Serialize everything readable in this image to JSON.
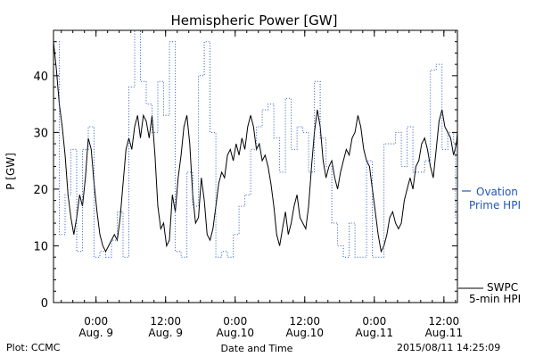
{
  "chart_data": {
    "type": "line",
    "title": "Hemispheric Power [GW]",
    "ylabel": "P [GW]",
    "xlabel": "Date and Time",
    "ylim": [
      0,
      48
    ],
    "yticks": [
      0,
      10,
      20,
      30,
      40
    ],
    "xlim": [
      "2015-08-08 16:40",
      "2015-08-11 14:20"
    ],
    "xticks": [
      {
        "time": "2015-08-09 00:00",
        "line1": "0:00",
        "line2": "Aug. 9"
      },
      {
        "time": "2015-08-09 12:00",
        "line1": "12:00",
        "line2": "Aug. 9"
      },
      {
        "time": "2015-08-10 00:00",
        "line1": "0:00",
        "line2": "Aug.10"
      },
      {
        "time": "2015-08-10 12:00",
        "line1": "12:00",
        "line2": "Aug.10"
      },
      {
        "time": "2015-08-11 00:00",
        "line1": "0:00",
        "line2": "Aug.11"
      },
      {
        "time": "2015-08-11 12:00",
        "line1": "12:00",
        "line2": "Aug.11"
      }
    ],
    "grid": false,
    "series": [
      {
        "name": "SWPC 5-min HPI",
        "name_line1": "SWPC",
        "name_line2": "5-min HPI",
        "color": "#000000",
        "style": "solid",
        "points": [
          [
            "2015-08-08 16:40",
            46
          ],
          [
            "2015-08-08 17:10",
            41
          ],
          [
            "2015-08-08 17:40",
            35
          ],
          [
            "2015-08-08 18:10",
            31
          ],
          [
            "2015-08-08 18:40",
            26
          ],
          [
            "2015-08-08 19:10",
            19
          ],
          [
            "2015-08-08 19:40",
            15
          ],
          [
            "2015-08-08 20:10",
            12
          ],
          [
            "2015-08-08 20:40",
            15
          ],
          [
            "2015-08-08 21:10",
            19
          ],
          [
            "2015-08-08 21:40",
            17
          ],
          [
            "2015-08-08 22:10",
            22
          ],
          [
            "2015-08-08 22:40",
            29
          ],
          [
            "2015-08-08 23:10",
            27
          ],
          [
            "2015-08-08 23:40",
            21
          ],
          [
            "2015-08-09 00:10",
            16
          ],
          [
            "2015-08-09 00:40",
            12
          ],
          [
            "2015-08-09 01:10",
            10
          ],
          [
            "2015-08-09 01:40",
            9
          ],
          [
            "2015-08-09 02:10",
            10
          ],
          [
            "2015-08-09 02:40",
            11
          ],
          [
            "2015-08-09 03:10",
            12
          ],
          [
            "2015-08-09 03:40",
            11
          ],
          [
            "2015-08-09 04:10",
            15
          ],
          [
            "2015-08-09 04:40",
            21
          ],
          [
            "2015-08-09 05:10",
            27
          ],
          [
            "2015-08-09 05:40",
            29
          ],
          [
            "2015-08-09 06:10",
            27
          ],
          [
            "2015-08-09 06:40",
            31
          ],
          [
            "2015-08-09 07:10",
            33
          ],
          [
            "2015-08-09 07:40",
            29
          ],
          [
            "2015-08-09 08:10",
            33
          ],
          [
            "2015-08-09 08:40",
            32
          ],
          [
            "2015-08-09 09:10",
            29
          ],
          [
            "2015-08-09 09:40",
            33
          ],
          [
            "2015-08-09 10:10",
            26
          ],
          [
            "2015-08-09 10:40",
            17
          ],
          [
            "2015-08-09 11:10",
            13
          ],
          [
            "2015-08-09 11:40",
            14
          ],
          [
            "2015-08-09 12:10",
            10
          ],
          [
            "2015-08-09 12:40",
            11
          ],
          [
            "2015-08-09 13:10",
            19
          ],
          [
            "2015-08-09 13:40",
            16
          ],
          [
            "2015-08-09 14:10",
            22
          ],
          [
            "2015-08-09 14:40",
            26
          ],
          [
            "2015-08-09 15:10",
            31
          ],
          [
            "2015-08-09 15:40",
            33
          ],
          [
            "2015-08-09 16:10",
            28
          ],
          [
            "2015-08-09 16:40",
            19
          ],
          [
            "2015-08-09 17:10",
            14
          ],
          [
            "2015-08-09 17:40",
            15
          ],
          [
            "2015-08-09 18:10",
            22
          ],
          [
            "2015-08-09 18:40",
            18
          ],
          [
            "2015-08-09 19:10",
            12
          ],
          [
            "2015-08-09 19:40",
            11
          ],
          [
            "2015-08-09 20:10",
            13
          ],
          [
            "2015-08-09 20:40",
            17
          ],
          [
            "2015-08-09 21:10",
            21
          ],
          [
            "2015-08-09 21:40",
            23
          ],
          [
            "2015-08-09 22:10",
            22
          ],
          [
            "2015-08-09 22:40",
            26
          ],
          [
            "2015-08-09 23:10",
            27
          ],
          [
            "2015-08-09 23:40",
            25
          ],
          [
            "2015-08-10 00:10",
            28
          ],
          [
            "2015-08-10 00:40",
            26
          ],
          [
            "2015-08-10 01:10",
            29
          ],
          [
            "2015-08-10 01:40",
            27
          ],
          [
            "2015-08-10 02:10",
            31
          ],
          [
            "2015-08-10 02:40",
            33
          ],
          [
            "2015-08-10 03:10",
            31
          ],
          [
            "2015-08-10 03:40",
            27
          ],
          [
            "2015-08-10 04:10",
            28
          ],
          [
            "2015-08-10 04:40",
            25
          ],
          [
            "2015-08-10 05:10",
            26
          ],
          [
            "2015-08-10 05:40",
            24
          ],
          [
            "2015-08-10 06:10",
            21
          ],
          [
            "2015-08-10 06:40",
            17
          ],
          [
            "2015-08-10 07:10",
            12
          ],
          [
            "2015-08-10 07:40",
            10
          ],
          [
            "2015-08-10 08:10",
            13
          ],
          [
            "2015-08-10 08:40",
            16
          ],
          [
            "2015-08-10 09:10",
            12
          ],
          [
            "2015-08-10 09:40",
            14
          ],
          [
            "2015-08-10 10:10",
            17
          ],
          [
            "2015-08-10 10:40",
            19
          ],
          [
            "2015-08-10 11:10",
            15
          ],
          [
            "2015-08-10 11:40",
            14
          ],
          [
            "2015-08-10 12:10",
            13
          ],
          [
            "2015-08-10 12:40",
            17
          ],
          [
            "2015-08-10 13:10",
            24
          ],
          [
            "2015-08-10 13:40",
            30
          ],
          [
            "2015-08-10 14:10",
            34
          ],
          [
            "2015-08-10 14:40",
            31
          ],
          [
            "2015-08-10 15:10",
            25
          ],
          [
            "2015-08-10 15:40",
            22
          ],
          [
            "2015-08-10 16:10",
            24
          ],
          [
            "2015-08-10 16:40",
            25
          ],
          [
            "2015-08-10 17:10",
            22
          ],
          [
            "2015-08-10 17:40",
            20
          ],
          [
            "2015-08-10 18:10",
            23
          ],
          [
            "2015-08-10 18:40",
            25
          ],
          [
            "2015-08-10 19:10",
            27
          ],
          [
            "2015-08-10 19:40",
            26
          ],
          [
            "2015-08-10 20:10",
            29
          ],
          [
            "2015-08-10 20:40",
            30
          ],
          [
            "2015-08-10 21:10",
            33
          ],
          [
            "2015-08-10 21:40",
            31
          ],
          [
            "2015-08-10 22:10",
            27
          ],
          [
            "2015-08-10 22:40",
            25
          ],
          [
            "2015-08-10 23:10",
            24
          ],
          [
            "2015-08-10 23:40",
            20
          ],
          [
            "2015-08-11 00:10",
            16
          ],
          [
            "2015-08-11 00:40",
            12
          ],
          [
            "2015-08-11 01:10",
            9
          ],
          [
            "2015-08-11 01:40",
            10
          ],
          [
            "2015-08-11 02:10",
            12
          ],
          [
            "2015-08-11 02:40",
            15
          ],
          [
            "2015-08-11 03:10",
            16
          ],
          [
            "2015-08-11 03:40",
            14
          ],
          [
            "2015-08-11 04:10",
            13
          ],
          [
            "2015-08-11 04:40",
            14
          ],
          [
            "2015-08-11 05:10",
            18
          ],
          [
            "2015-08-11 05:40",
            20
          ],
          [
            "2015-08-11 06:10",
            22
          ],
          [
            "2015-08-11 06:40",
            20
          ],
          [
            "2015-08-11 07:10",
            24
          ],
          [
            "2015-08-11 07:40",
            25
          ],
          [
            "2015-08-11 08:10",
            28
          ],
          [
            "2015-08-11 08:40",
            29
          ],
          [
            "2015-08-11 09:10",
            27
          ],
          [
            "2015-08-11 09:40",
            24
          ],
          [
            "2015-08-11 10:10",
            22
          ],
          [
            "2015-08-11 10:40",
            27
          ],
          [
            "2015-08-11 11:10",
            32
          ],
          [
            "2015-08-11 11:40",
            34
          ],
          [
            "2015-08-11 12:10",
            31
          ],
          [
            "2015-08-11 12:40",
            30
          ],
          [
            "2015-08-11 13:10",
            29
          ],
          [
            "2015-08-11 13:40",
            26
          ],
          [
            "2015-08-11 14:10",
            28
          ],
          [
            "2015-08-11 14:20",
            30
          ]
        ]
      },
      {
        "name": "Ovation Prime HPI",
        "name_line1": "Ovation",
        "name_line2": "Prime HPI",
        "color": "#2255bb",
        "style": "dotted-step",
        "points": [
          [
            "2015-08-08 16:40",
            46
          ],
          [
            "2015-08-08 17:40",
            12
          ],
          [
            "2015-08-08 18:40",
            19
          ],
          [
            "2015-08-08 19:40",
            27
          ],
          [
            "2015-08-08 20:40",
            9
          ],
          [
            "2015-08-08 21:40",
            27
          ],
          [
            "2015-08-08 22:40",
            31
          ],
          [
            "2015-08-08 23:40",
            8
          ],
          [
            "2015-08-09 00:40",
            9
          ],
          [
            "2015-08-09 01:40",
            8
          ],
          [
            "2015-08-09 02:40",
            11
          ],
          [
            "2015-08-09 03:40",
            16
          ],
          [
            "2015-08-09 04:40",
            8
          ],
          [
            "2015-08-09 05:40",
            38
          ],
          [
            "2015-08-09 06:40",
            48
          ],
          [
            "2015-08-09 07:40",
            39
          ],
          [
            "2015-08-09 08:40",
            35
          ],
          [
            "2015-08-09 09:40",
            30
          ],
          [
            "2015-08-09 10:40",
            39
          ],
          [
            "2015-08-09 11:40",
            33
          ],
          [
            "2015-08-09 12:40",
            46
          ],
          [
            "2015-08-09 13:40",
            9
          ],
          [
            "2015-08-09 14:40",
            8
          ],
          [
            "2015-08-09 15:40",
            23
          ],
          [
            "2015-08-09 16:40",
            17
          ],
          [
            "2015-08-09 17:40",
            40
          ],
          [
            "2015-08-09 18:40",
            46
          ],
          [
            "2015-08-09 19:40",
            30
          ],
          [
            "2015-08-09 20:40",
            8
          ],
          [
            "2015-08-09 21:40",
            9
          ],
          [
            "2015-08-09 22:40",
            8
          ],
          [
            "2015-08-09 23:40",
            12
          ],
          [
            "2015-08-10 00:40",
            17
          ],
          [
            "2015-08-10 01:40",
            19
          ],
          [
            "2015-08-10 02:40",
            27
          ],
          [
            "2015-08-10 03:40",
            31
          ],
          [
            "2015-08-10 04:40",
            34
          ],
          [
            "2015-08-10 05:40",
            35
          ],
          [
            "2015-08-10 06:40",
            29
          ],
          [
            "2015-08-10 07:40",
            23
          ],
          [
            "2015-08-10 08:40",
            36
          ],
          [
            "2015-08-10 09:40",
            27
          ],
          [
            "2015-08-10 10:40",
            31
          ],
          [
            "2015-08-10 11:40",
            30
          ],
          [
            "2015-08-10 12:40",
            23
          ],
          [
            "2015-08-10 13:40",
            39
          ],
          [
            "2015-08-10 14:40",
            29
          ],
          [
            "2015-08-10 15:40",
            24
          ],
          [
            "2015-08-10 16:40",
            14
          ],
          [
            "2015-08-10 17:40",
            10
          ],
          [
            "2015-08-10 18:40",
            8
          ],
          [
            "2015-08-10 19:40",
            14
          ],
          [
            "2015-08-10 20:40",
            8
          ],
          [
            "2015-08-10 21:40",
            8
          ],
          [
            "2015-08-10 22:40",
            25
          ],
          [
            "2015-08-10 23:40",
            8
          ],
          [
            "2015-08-11 00:40",
            8
          ],
          [
            "2015-08-11 01:40",
            28
          ],
          [
            "2015-08-11 02:40",
            28
          ],
          [
            "2015-08-11 03:40",
            30
          ],
          [
            "2015-08-11 04:40",
            24
          ],
          [
            "2015-08-11 05:40",
            31
          ],
          [
            "2015-08-11 06:40",
            23
          ],
          [
            "2015-08-11 07:40",
            23
          ],
          [
            "2015-08-11 08:40",
            25
          ],
          [
            "2015-08-11 09:40",
            41
          ],
          [
            "2015-08-11 10:40",
            42
          ],
          [
            "2015-08-11 11:40",
            27
          ],
          [
            "2015-08-11 12:40",
            30
          ],
          [
            "2015-08-11 13:40",
            28
          ],
          [
            "2015-08-11 14:00",
            15
          ]
        ]
      }
    ]
  },
  "footer": {
    "plot_credit": "Plot: CCMC",
    "timestamp": "2015/08/11 14:25:09"
  }
}
